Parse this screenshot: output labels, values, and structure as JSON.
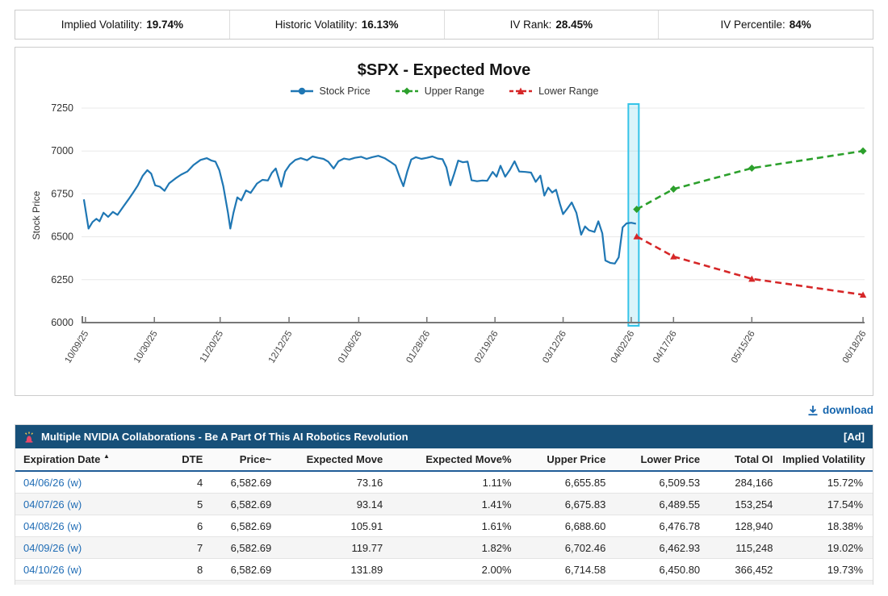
{
  "stats_bar": {
    "items": [
      {
        "label": "Implied Volatility:",
        "value": "19.74%"
      },
      {
        "label": "Historic Volatility:",
        "value": "16.13%"
      },
      {
        "label": "IV Rank:",
        "value": "28.45%"
      },
      {
        "label": "IV Percentile:",
        "value": "84%"
      }
    ]
  },
  "chart": {
    "title": "$SPX - Expected Move",
    "ylabel": "Stock Price",
    "legend": [
      {
        "label": "Stock Price",
        "color": "#1f77b4",
        "marker": "circle",
        "dashed": false
      },
      {
        "label": "Upper Range",
        "color": "#2ca02c",
        "marker": "diamond",
        "dashed": true
      },
      {
        "label": "Lower Range",
        "color": "#d62728",
        "marker": "triangle",
        "dashed": true
      }
    ]
  },
  "chart_data": {
    "type": "line",
    "title": "$SPX - Expected Move",
    "xlabel": "",
    "ylabel": "Stock Price",
    "ylim": [
      6000,
      7250
    ],
    "yticks": [
      6000,
      6250,
      6500,
      6750,
      7000,
      7250
    ],
    "xticks": [
      "10/09/25",
      "10/30/25",
      "11/20/25",
      "12/12/25",
      "01/06/26",
      "01/28/26",
      "02/19/26",
      "03/12/26",
      "04/02/26",
      "04/17/26",
      "05/15/26",
      "06/18/26"
    ],
    "xtick_pos": [
      0.005,
      0.093,
      0.177,
      0.265,
      0.354,
      0.441,
      0.528,
      0.615,
      0.702,
      0.756,
      0.856,
      0.998
    ],
    "highlight_x": 0.705,
    "grid": true,
    "legend_position": "top",
    "series": [
      {
        "name": "Stock Price",
        "color": "#1f77b4",
        "style": "solid",
        "points": [
          [
            0.003,
            6718
          ],
          [
            0.009,
            6548
          ],
          [
            0.014,
            6586
          ],
          [
            0.019,
            6605
          ],
          [
            0.023,
            6590
          ],
          [
            0.028,
            6640
          ],
          [
            0.034,
            6616
          ],
          [
            0.04,
            6645
          ],
          [
            0.046,
            6628
          ],
          [
            0.054,
            6680
          ],
          [
            0.06,
            6718
          ],
          [
            0.066,
            6758
          ],
          [
            0.072,
            6800
          ],
          [
            0.078,
            6855
          ],
          [
            0.084,
            6888
          ],
          [
            0.089,
            6868
          ],
          [
            0.094,
            6800
          ],
          [
            0.1,
            6792
          ],
          [
            0.106,
            6768
          ],
          [
            0.112,
            6812
          ],
          [
            0.12,
            6840
          ],
          [
            0.127,
            6862
          ],
          [
            0.135,
            6880
          ],
          [
            0.143,
            6918
          ],
          [
            0.152,
            6948
          ],
          [
            0.16,
            6958
          ],
          [
            0.166,
            6944
          ],
          [
            0.171,
            6938
          ],
          [
            0.176,
            6888
          ],
          [
            0.181,
            6795
          ],
          [
            0.187,
            6640
          ],
          [
            0.19,
            6548
          ],
          [
            0.194,
            6640
          ],
          [
            0.199,
            6730
          ],
          [
            0.204,
            6712
          ],
          [
            0.21,
            6770
          ],
          [
            0.216,
            6756
          ],
          [
            0.224,
            6810
          ],
          [
            0.231,
            6832
          ],
          [
            0.238,
            6828
          ],
          [
            0.243,
            6872
          ],
          [
            0.248,
            6898
          ],
          [
            0.255,
            6792
          ],
          [
            0.26,
            6880
          ],
          [
            0.266,
            6920
          ],
          [
            0.273,
            6948
          ],
          [
            0.28,
            6958
          ],
          [
            0.288,
            6946
          ],
          [
            0.295,
            6968
          ],
          [
            0.302,
            6960
          ],
          [
            0.309,
            6954
          ],
          [
            0.315,
            6938
          ],
          [
            0.322,
            6898
          ],
          [
            0.328,
            6940
          ],
          [
            0.335,
            6956
          ],
          [
            0.342,
            6950
          ],
          [
            0.349,
            6960
          ],
          [
            0.357,
            6966
          ],
          [
            0.364,
            6954
          ],
          [
            0.371,
            6964
          ],
          [
            0.379,
            6972
          ],
          [
            0.387,
            6958
          ],
          [
            0.394,
            6938
          ],
          [
            0.401,
            6916
          ],
          [
            0.407,
            6840
          ],
          [
            0.411,
            6795
          ],
          [
            0.416,
            6880
          ],
          [
            0.421,
            6950
          ],
          [
            0.427,
            6964
          ],
          [
            0.434,
            6954
          ],
          [
            0.441,
            6960
          ],
          [
            0.448,
            6968
          ],
          [
            0.455,
            6956
          ],
          [
            0.461,
            6952
          ],
          [
            0.466,
            6904
          ],
          [
            0.471,
            6800
          ],
          [
            0.476,
            6868
          ],
          [
            0.481,
            6944
          ],
          [
            0.487,
            6934
          ],
          [
            0.493,
            6938
          ],
          [
            0.498,
            6830
          ],
          [
            0.505,
            6824
          ],
          [
            0.512,
            6828
          ],
          [
            0.518,
            6826
          ],
          [
            0.525,
            6878
          ],
          [
            0.53,
            6850
          ],
          [
            0.535,
            6914
          ],
          [
            0.541,
            6850
          ],
          [
            0.547,
            6890
          ],
          [
            0.553,
            6940
          ],
          [
            0.559,
            6880
          ],
          [
            0.567,
            6878
          ],
          [
            0.574,
            6874
          ],
          [
            0.58,
            6820
          ],
          [
            0.586,
            6856
          ],
          [
            0.591,
            6740
          ],
          [
            0.596,
            6786
          ],
          [
            0.601,
            6758
          ],
          [
            0.606,
            6774
          ],
          [
            0.611,
            6690
          ],
          [
            0.615,
            6632
          ],
          [
            0.621,
            6668
          ],
          [
            0.626,
            6700
          ],
          [
            0.632,
            6640
          ],
          [
            0.638,
            6512
          ],
          [
            0.643,
            6560
          ],
          [
            0.648,
            6538
          ],
          [
            0.655,
            6528
          ],
          [
            0.66,
            6590
          ],
          [
            0.665,
            6520
          ],
          [
            0.669,
            6362
          ],
          [
            0.675,
            6348
          ],
          [
            0.681,
            6344
          ],
          [
            0.686,
            6380
          ],
          [
            0.691,
            6555
          ],
          [
            0.696,
            6578
          ],
          [
            0.702,
            6582
          ],
          [
            0.708,
            6576
          ]
        ]
      },
      {
        "name": "Upper Range",
        "color": "#2ca02c",
        "style": "dashed",
        "points": [
          [
            0.709,
            6660
          ],
          [
            0.756,
            6778
          ],
          [
            0.856,
            6900
          ],
          [
            0.998,
            7000
          ]
        ]
      },
      {
        "name": "Lower Range",
        "color": "#d62728",
        "style": "dashed",
        "points": [
          [
            0.709,
            6502
          ],
          [
            0.756,
            6385
          ],
          [
            0.856,
            6255
          ],
          [
            0.998,
            6162
          ]
        ]
      }
    ]
  },
  "download": {
    "label": "download"
  },
  "ad_banner": {
    "icon": "siren-icon",
    "text": "Multiple NVIDIA Collaborations - Be A Part Of This AI Robotics Revolution",
    "tag": "[Ad]"
  },
  "table": {
    "columns": [
      {
        "label": "Expiration Date",
        "sort": "asc"
      },
      {
        "label": "DTE"
      },
      {
        "label": "Price~"
      },
      {
        "label": "Expected Move"
      },
      {
        "label": "Expected Move%"
      },
      {
        "label": "Upper Price"
      },
      {
        "label": "Lower Price"
      },
      {
        "label": "Total OI"
      },
      {
        "label": "Implied Volatility"
      }
    ],
    "rows": [
      [
        "04/06/26 (w)",
        "4",
        "6,582.69",
        "73.16",
        "1.11%",
        "6,655.85",
        "6,509.53",
        "284,166",
        "15.72%"
      ],
      [
        "04/07/26 (w)",
        "5",
        "6,582.69",
        "93.14",
        "1.41%",
        "6,675.83",
        "6,489.55",
        "153,254",
        "17.54%"
      ],
      [
        "04/08/26 (w)",
        "6",
        "6,582.69",
        "105.91",
        "1.61%",
        "6,688.60",
        "6,476.78",
        "128,940",
        "18.38%"
      ],
      [
        "04/09/26 (w)",
        "7",
        "6,582.69",
        "119.77",
        "1.82%",
        "6,702.46",
        "6,462.93",
        "115,248",
        "19.02%"
      ],
      [
        "04/10/26 (w)",
        "8",
        "6,582.69",
        "131.89",
        "2.00%",
        "6,714.58",
        "6,450.80",
        "366,452",
        "19.73%"
      ]
    ]
  },
  "colors": {
    "stock_price": "#1f77b4",
    "upper_range": "#2ca02c",
    "lower_range": "#d62728",
    "highlight_border": "#35c4e8",
    "highlight_fill": "rgba(125,214,238,0.28)",
    "ad_background": "#175079",
    "link": "#1f6cb5",
    "header_underline": "#1f5c97"
  }
}
